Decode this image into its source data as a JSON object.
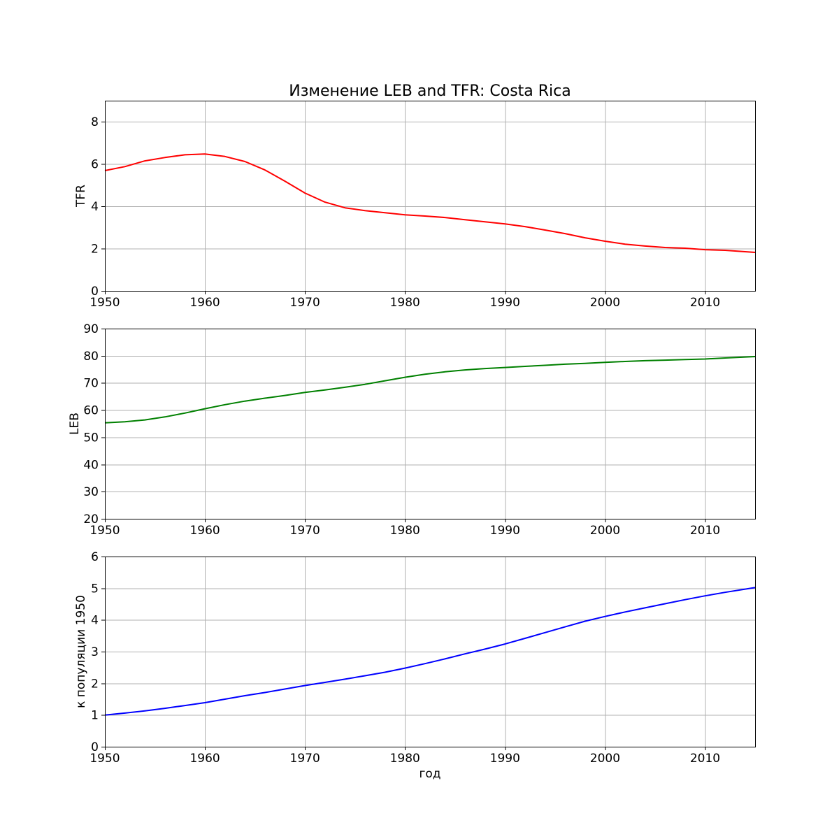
{
  "chart_data": [
    {
      "type": "line",
      "title": "Изменение LEB and TFR: Costa Rica",
      "ylabel": "TFR",
      "xlim": [
        1950,
        2015
      ],
      "ylim": [
        0,
        9
      ],
      "xticks": [
        1950,
        1960,
        1970,
        1980,
        1990,
        2000,
        2010
      ],
      "yticks": [
        0,
        2,
        4,
        6,
        8
      ],
      "grid": true,
      "x": [
        1950,
        1952,
        1954,
        1956,
        1958,
        1960,
        1962,
        1964,
        1966,
        1968,
        1970,
        1972,
        1974,
        1976,
        1978,
        1980,
        1982,
        1984,
        1986,
        1988,
        1990,
        1992,
        1994,
        1996,
        1998,
        2000,
        2002,
        2004,
        2006,
        2008,
        2010,
        2012,
        2015
      ],
      "series": [
        {
          "color": "#ff0000",
          "values": [
            5.69,
            5.88,
            6.15,
            6.31,
            6.44,
            6.48,
            6.36,
            6.12,
            5.72,
            5.19,
            4.63,
            4.2,
            3.93,
            3.8,
            3.7,
            3.6,
            3.54,
            3.47,
            3.37,
            3.27,
            3.17,
            3.04,
            2.88,
            2.71,
            2.51,
            2.35,
            2.21,
            2.12,
            2.05,
            2.02,
            1.95,
            1.92,
            1.82
          ]
        }
      ]
    },
    {
      "type": "line",
      "ylabel": "LEB",
      "xlim": [
        1950,
        2015
      ],
      "ylim": [
        20,
        90
      ],
      "xticks": [
        1950,
        1960,
        1970,
        1980,
        1990,
        2000,
        2010
      ],
      "yticks": [
        20,
        30,
        40,
        50,
        60,
        70,
        80,
        90
      ],
      "grid": true,
      "x": [
        1950,
        1952,
        1954,
        1956,
        1958,
        1960,
        1962,
        1964,
        1966,
        1968,
        1970,
        1972,
        1974,
        1976,
        1978,
        1980,
        1982,
        1984,
        1986,
        1988,
        1990,
        1992,
        1994,
        1996,
        1998,
        2000,
        2002,
        2004,
        2006,
        2008,
        2010,
        2012,
        2015
      ],
      "series": [
        {
          "color": "#008000",
          "values": [
            55.3,
            55.7,
            56.4,
            57.5,
            58.9,
            60.5,
            62.0,
            63.3,
            64.4,
            65.4,
            66.5,
            67.4,
            68.4,
            69.5,
            70.8,
            72.1,
            73.2,
            74.1,
            74.8,
            75.3,
            75.7,
            76.1,
            76.5,
            76.9,
            77.2,
            77.6,
            77.9,
            78.2,
            78.4,
            78.6,
            78.8,
            79.2,
            79.7
          ]
        }
      ]
    },
    {
      "type": "line",
      "ylabel": "к популяции 1950",
      "xlabel": "год",
      "xlim": [
        1950,
        2015
      ],
      "ylim": [
        0,
        6
      ],
      "xticks": [
        1950,
        1960,
        1970,
        1980,
        1990,
        2000,
        2010
      ],
      "yticks": [
        0,
        1,
        2,
        3,
        4,
        5,
        6
      ],
      "grid": true,
      "x": [
        1950,
        1952,
        1954,
        1956,
        1958,
        1960,
        1962,
        1964,
        1966,
        1968,
        1970,
        1972,
        1974,
        1976,
        1978,
        1980,
        1982,
        1984,
        1986,
        1988,
        1990,
        1992,
        1994,
        1996,
        1998,
        2000,
        2002,
        2004,
        2006,
        2008,
        2010,
        2012,
        2015
      ],
      "series": [
        {
          "color": "#0000ff",
          "values": [
            1.0,
            1.06,
            1.13,
            1.21,
            1.3,
            1.39,
            1.5,
            1.61,
            1.71,
            1.82,
            1.93,
            2.03,
            2.13,
            2.24,
            2.35,
            2.48,
            2.62,
            2.77,
            2.93,
            3.08,
            3.24,
            3.42,
            3.6,
            3.78,
            3.96,
            4.11,
            4.25,
            4.38,
            4.51,
            4.64,
            4.76,
            4.87,
            5.02
          ]
        }
      ]
    }
  ]
}
